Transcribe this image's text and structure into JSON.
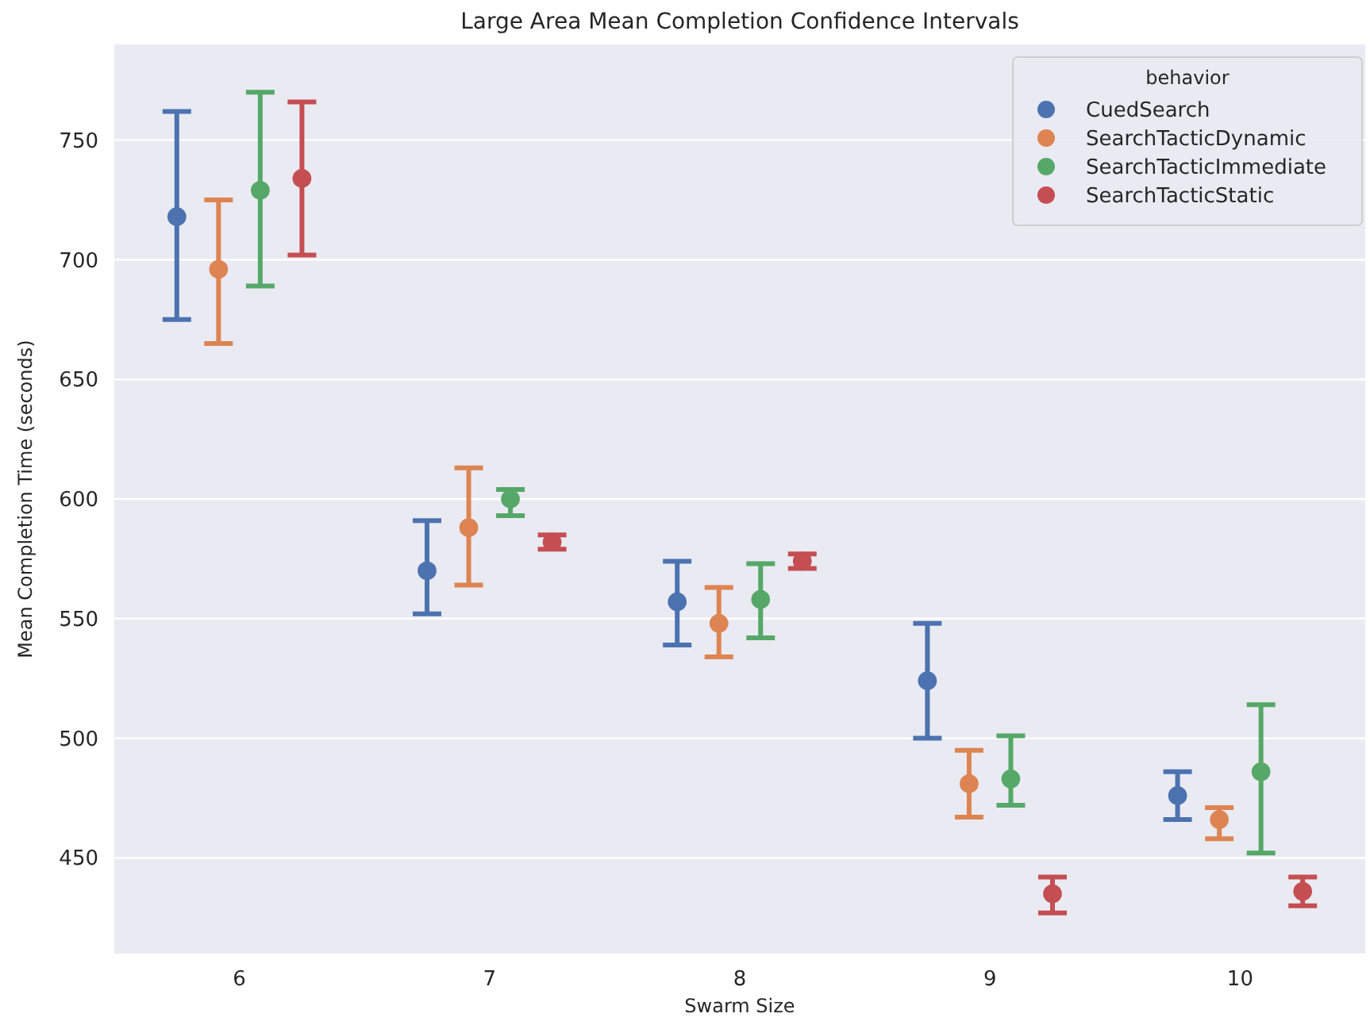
{
  "chart_data": {
    "type": "scatter",
    "title": "Large Area Mean Completion Confidence Intervals",
    "xlabel": "Swarm Size",
    "ylabel": "Mean Completion Time (seconds)",
    "legend_title": "behavior",
    "categories": [
      "6",
      "7",
      "8",
      "9",
      "10"
    ],
    "series": [
      {
        "name": "CuedSearch",
        "color": "#4c72b0",
        "values": [
          718,
          570,
          557,
          524,
          476
        ],
        "errors": [
          [
            675,
            762
          ],
          [
            552,
            591
          ],
          [
            539,
            574
          ],
          [
            500,
            548
          ],
          [
            466,
            486
          ]
        ]
      },
      {
        "name": "SearchTacticDynamic",
        "color": "#dd8452",
        "values": [
          696,
          588,
          548,
          481,
          466
        ],
        "errors": [
          [
            665,
            725
          ],
          [
            564,
            613
          ],
          [
            534,
            563
          ],
          [
            467,
            495
          ],
          [
            458,
            471
          ]
        ]
      },
      {
        "name": "SearchTacticImmediate",
        "color": "#55a868",
        "values": [
          729,
          600,
          558,
          483,
          486
        ],
        "errors": [
          [
            689,
            770
          ],
          [
            593,
            604
          ],
          [
            542,
            573
          ],
          [
            472,
            501
          ],
          [
            452,
            514
          ]
        ]
      },
      {
        "name": "SearchTacticStatic",
        "color": "#c44e52",
        "values": [
          734,
          582,
          574,
          435,
          436
        ],
        "errors": [
          [
            702,
            766
          ],
          [
            579,
            585
          ],
          [
            571,
            577
          ],
          [
            427,
            442
          ],
          [
            430,
            442
          ]
        ]
      }
    ],
    "ylim": [
      410,
      790
    ],
    "yticks": [
      450,
      500,
      550,
      600,
      650,
      700,
      750
    ],
    "grid": "y",
    "legend": "top right",
    "marker": "circle"
  }
}
